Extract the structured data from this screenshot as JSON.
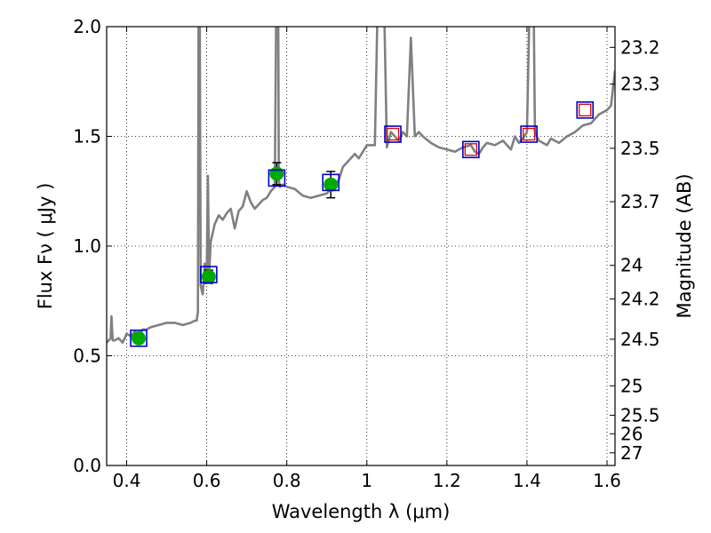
{
  "chart_data": {
    "type": "line",
    "title": "",
    "xlabel": "Wavelength  λ (μm)",
    "ylabel": "Flux  Fν  ( μJy )",
    "y2label": "Magnitude (AB)",
    "xlim": [
      0.35,
      1.62
    ],
    "ylim": [
      0.0,
      2.0
    ],
    "grid": true,
    "x_ticks": [
      {
        "value": 0.4,
        "label": "0.4"
      },
      {
        "value": 0.6,
        "label": "0.6"
      },
      {
        "value": 0.8,
        "label": "0.8"
      },
      {
        "value": 1.0,
        "label": "1"
      },
      {
        "value": 1.2,
        "label": "1.2"
      },
      {
        "value": 1.4,
        "label": "1.4"
      },
      {
        "value": 1.6,
        "label": "1.6"
      }
    ],
    "y_ticks": [
      {
        "value": 0.0,
        "label": "0.0"
      },
      {
        "value": 0.5,
        "label": "0.5"
      },
      {
        "value": 1.0,
        "label": "1.0"
      },
      {
        "value": 1.5,
        "label": "1.5"
      },
      {
        "value": 2.0,
        "label": "2.0"
      }
    ],
    "y2_ticks": [
      {
        "value": 23.2,
        "label": "23.2"
      },
      {
        "value": 23.3,
        "label": "23.3"
      },
      {
        "value": 23.5,
        "label": "23.5"
      },
      {
        "value": 23.7,
        "label": "23.7"
      },
      {
        "value": 24.0,
        "label": "24"
      },
      {
        "value": 24.2,
        "label": "24.2"
      },
      {
        "value": 24.5,
        "label": "24.5"
      },
      {
        "value": 25.0,
        "label": "25"
      },
      {
        "value": 25.5,
        "label": "25.5"
      },
      {
        "value": 26.0,
        "label": "26"
      },
      {
        "value": 27.0,
        "label": "27"
      }
    ],
    "colors": {
      "sed_line": "#808080",
      "observed_points": "#00aa00",
      "model_box": "#0000cc",
      "predicted_box": "#dd0000",
      "error_bar": "#000000"
    },
    "series": [
      {
        "style": "sed-line",
        "x": [
          0.35,
          0.36,
          0.362,
          0.365,
          0.37,
          0.38,
          0.39,
          0.4,
          0.41,
          0.42,
          0.43,
          0.44,
          0.45,
          0.46,
          0.48,
          0.5,
          0.52,
          0.54,
          0.56,
          0.57,
          0.575,
          0.578,
          0.58,
          0.582,
          0.585,
          0.59,
          0.595,
          0.598,
          0.6,
          0.603,
          0.606,
          0.61,
          0.62,
          0.63,
          0.64,
          0.65,
          0.66,
          0.67,
          0.68,
          0.69,
          0.7,
          0.71,
          0.72,
          0.73,
          0.74,
          0.75,
          0.76,
          0.77,
          0.775,
          0.778,
          0.78,
          0.783,
          0.79,
          0.8,
          0.82,
          0.84,
          0.86,
          0.88,
          0.9,
          0.92,
          0.93,
          0.94,
          0.95,
          0.96,
          0.97,
          0.98,
          0.99,
          1.0,
          1.02,
          1.03,
          1.04,
          1.05,
          1.06,
          1.07,
          1.08,
          1.09,
          1.1,
          1.11,
          1.12,
          1.13,
          1.14,
          1.16,
          1.18,
          1.2,
          1.22,
          1.24,
          1.26,
          1.27,
          1.28,
          1.29,
          1.3,
          1.32,
          1.34,
          1.36,
          1.37,
          1.38,
          1.39,
          1.4,
          1.41,
          1.415,
          1.42,
          1.43,
          1.44,
          1.45,
          1.46,
          1.48,
          1.5,
          1.52,
          1.54,
          1.56,
          1.58,
          1.6,
          1.61,
          1.62
        ],
        "y": [
          0.56,
          0.58,
          0.68,
          0.57,
          0.57,
          0.58,
          0.56,
          0.6,
          0.59,
          0.61,
          0.59,
          0.62,
          0.62,
          0.63,
          0.64,
          0.65,
          0.65,
          0.64,
          0.65,
          0.66,
          0.66,
          0.7,
          2.4,
          2.4,
          0.82,
          0.78,
          0.92,
          0.9,
          0.86,
          1.32,
          0.87,
          1.02,
          1.1,
          1.14,
          1.12,
          1.15,
          1.17,
          1.08,
          1.16,
          1.18,
          1.25,
          1.2,
          1.17,
          1.19,
          1.21,
          1.22,
          1.25,
          1.27,
          2.4,
          2.4,
          1.3,
          1.27,
          1.28,
          1.27,
          1.26,
          1.23,
          1.22,
          1.23,
          1.24,
          1.28,
          1.3,
          1.36,
          1.38,
          1.4,
          1.42,
          1.4,
          1.43,
          1.46,
          1.46,
          2.4,
          2.4,
          1.45,
          1.52,
          1.5,
          1.48,
          1.52,
          1.5,
          1.95,
          1.5,
          1.52,
          1.5,
          1.47,
          1.45,
          1.44,
          1.43,
          1.45,
          1.46,
          1.43,
          1.42,
          1.45,
          1.47,
          1.46,
          1.48,
          1.44,
          1.5,
          1.47,
          1.49,
          1.52,
          2.4,
          2.4,
          1.52,
          1.48,
          1.47,
          1.46,
          1.49,
          1.47,
          1.5,
          1.52,
          1.55,
          1.56,
          1.6,
          1.62,
          1.64,
          1.8
        ]
      },
      {
        "style": "observed-points-with-error",
        "x": [
          0.43,
          0.605,
          0.775,
          0.91
        ],
        "y": [
          0.58,
          0.86,
          1.33,
          1.28
        ],
        "yerr": [
          0.02,
          0.03,
          0.05,
          0.06
        ]
      },
      {
        "style": "model-boxes",
        "x": [
          0.43,
          0.605,
          0.775,
          0.91,
          1.065,
          1.26,
          1.405,
          1.545
        ],
        "y": [
          0.58,
          0.87,
          1.31,
          1.29,
          1.51,
          1.44,
          1.51,
          1.62
        ]
      },
      {
        "style": "predicted-boxes",
        "x": [
          1.065,
          1.26,
          1.405,
          1.545
        ],
        "y": [
          1.51,
          1.44,
          1.51,
          1.62
        ]
      }
    ]
  }
}
